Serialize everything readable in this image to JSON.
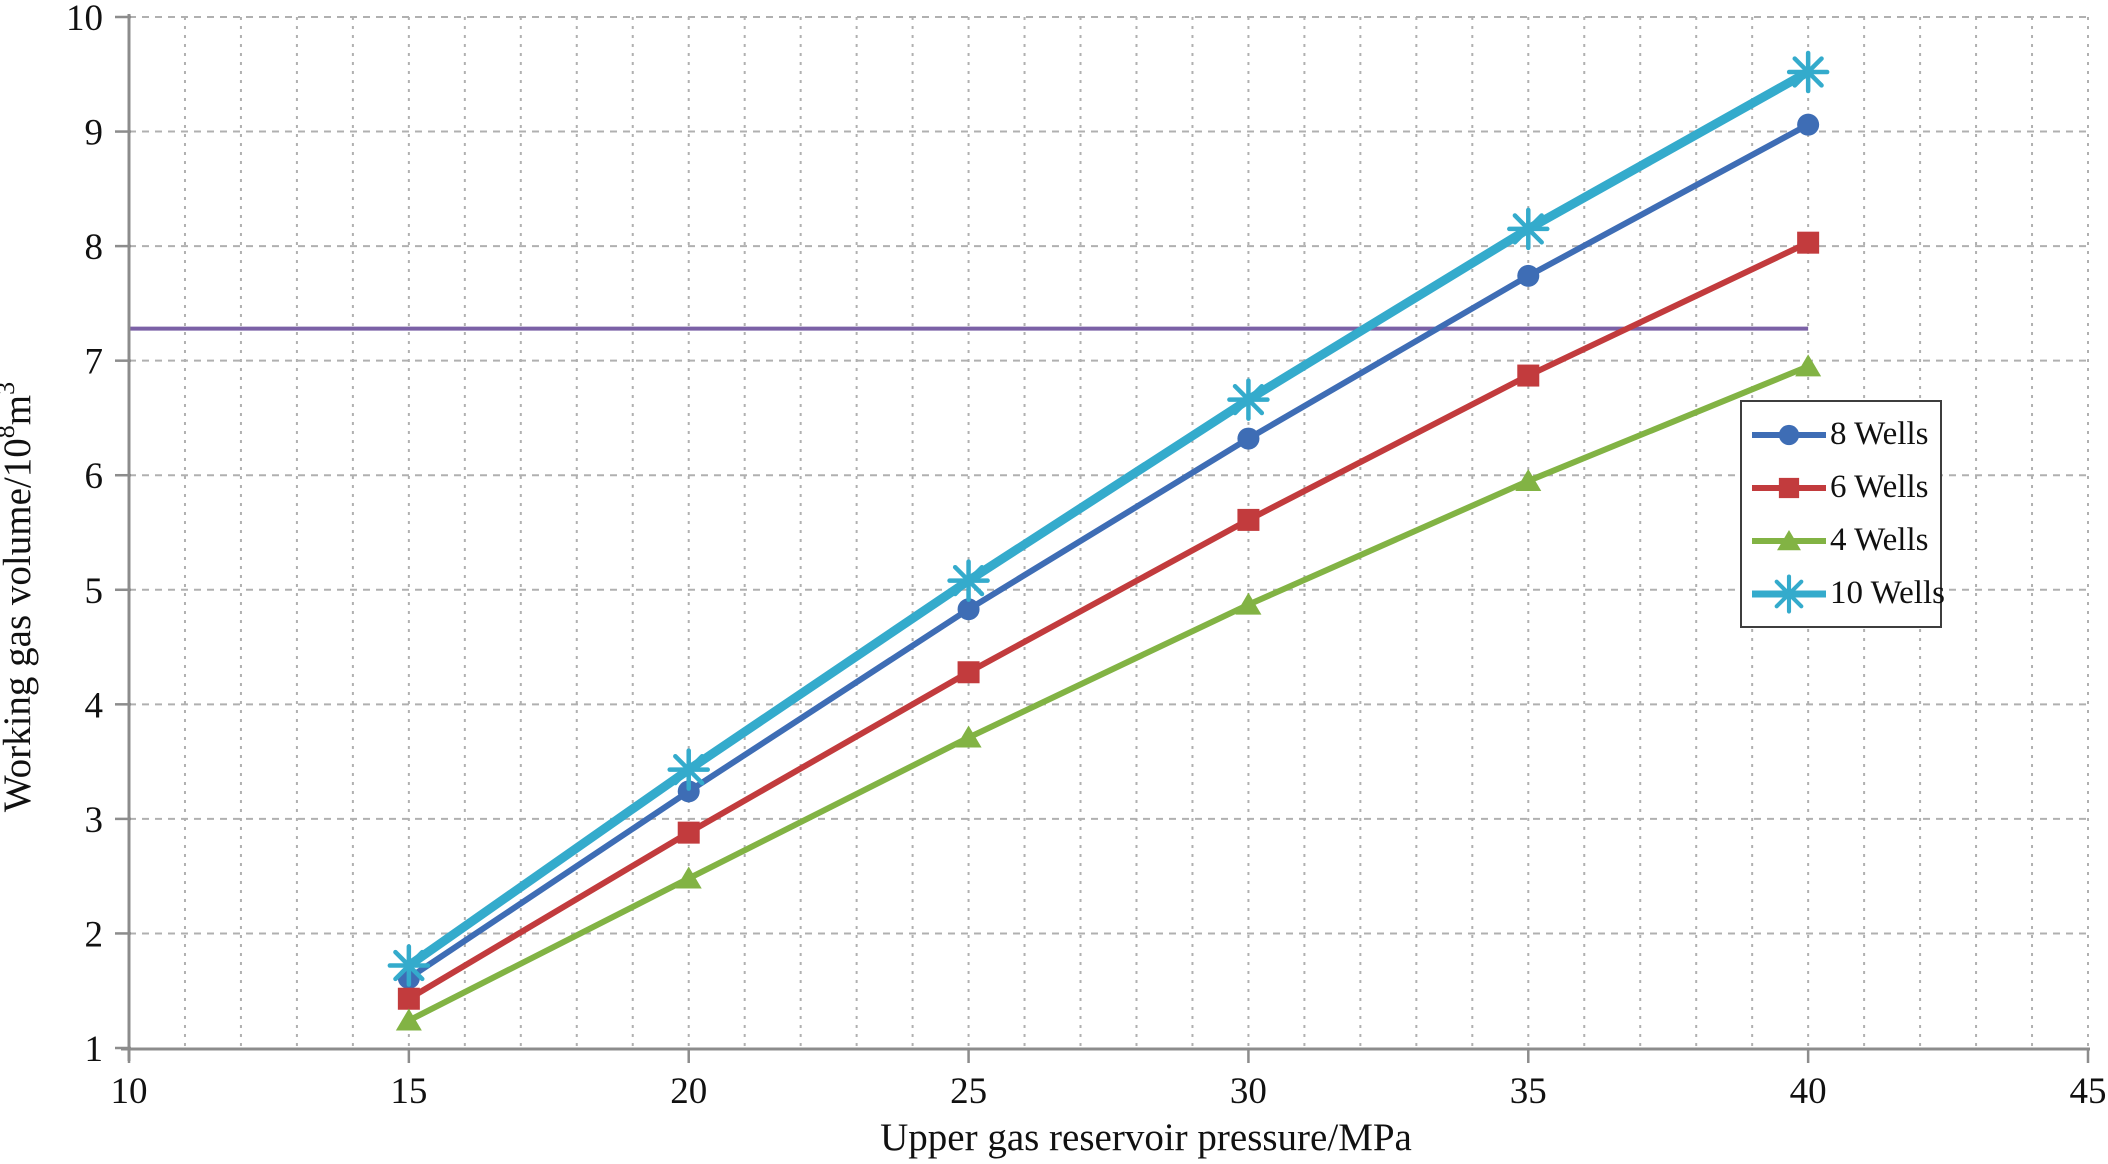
{
  "page": {
    "background": "#ffffff"
  },
  "chart_data": {
    "type": "line",
    "title": "",
    "xlabel": "Upper gas reservoir pressure/MPa",
    "ylabel": "Working gas volume/10⁸m³",
    "ylabel_segments": [
      {
        "text": "Working gas volume/10",
        "sup": false
      },
      {
        "text": "8",
        "sup": true
      },
      {
        "text": "m",
        "sup": false
      },
      {
        "text": "3",
        "sup": true
      }
    ],
    "xlim": [
      10,
      45
    ],
    "ylim": [
      1,
      10
    ],
    "x_ticks": [
      10,
      15,
      20,
      25,
      30,
      35,
      40,
      45
    ],
    "y_ticks": [
      1,
      2,
      3,
      4,
      5,
      6,
      7,
      8,
      9,
      10
    ],
    "grid": {
      "horizontal_step": 1,
      "vertical_step": 1,
      "color": "#b0b0b0",
      "style": "dotted"
    },
    "axis_color": "#8c8c8c",
    "text_color": "#111111",
    "x": [
      15,
      20,
      25,
      30,
      35,
      40
    ],
    "series": [
      {
        "name": "8 Wells",
        "color": "#3E6DB5",
        "marker": "circle",
        "line_width": 6,
        "values": [
          1.61,
          3.24,
          4.83,
          6.32,
          7.74,
          9.06
        ]
      },
      {
        "name": "6 Wells",
        "color": "#C23B3D",
        "marker": "square",
        "line_width": 6,
        "values": [
          1.43,
          2.88,
          4.28,
          5.61,
          6.87,
          8.03
        ]
      },
      {
        "name": "4 Wells",
        "color": "#82B344",
        "marker": "triangle",
        "line_width": 6,
        "values": [
          1.24,
          2.48,
          3.71,
          4.87,
          5.95,
          6.95
        ]
      },
      {
        "name": "10 Wells",
        "color": "#34ABCC",
        "marker": "asterisk",
        "line_width": 9,
        "values": [
          1.72,
          3.43,
          5.08,
          6.66,
          8.15,
          9.52
        ]
      }
    ],
    "reference_line": {
      "value": 7.28,
      "x_start": 10,
      "x_end": 40,
      "color": "#7B61A6",
      "width": 4
    },
    "legend": {
      "position": "right-middle",
      "border_color": "#3e3e3e",
      "background": "#ffffff"
    }
  }
}
